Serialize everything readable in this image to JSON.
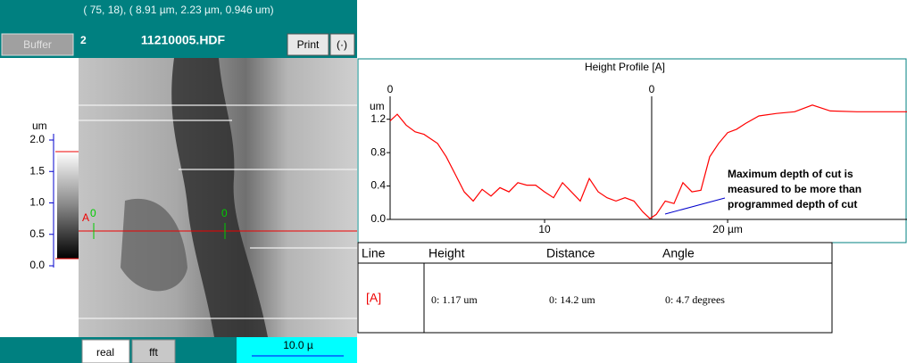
{
  "status_bar": {
    "coordinates": "( 75, 18),  ( 8.91 µm, 2.23 µm, 0.946 um)"
  },
  "toolbar": {
    "buffer_button": "Buffer",
    "buffer_number": "2",
    "filename": "11210005.HDF",
    "print_button": "Print",
    "extra_button": "(·)"
  },
  "color_scale": {
    "unit": "um",
    "lim": [
      0,
      2
    ],
    "ticks": [
      {
        "value": 0,
        "label": "0.0"
      },
      0.5,
      {
        "value": 1,
        "label": "1.0"
      },
      1.5,
      {
        "value": 2,
        "label": "2.0"
      }
    ]
  },
  "image": {
    "line_label": "A",
    "cursor_labels": [
      "0",
      "0"
    ]
  },
  "bottom_bar": {
    "real_button": "real",
    "fft_button": "fft",
    "scale_bar": "10.0 µ"
  },
  "chart_data": {
    "type": "line",
    "title": "Height Profile [A]",
    "y_label": "um",
    "color": "#ff0000",
    "x": [
      1.56,
      1.95,
      2.44,
      2.93,
      3.41,
      4.15,
      4.63,
      5.12,
      5.61,
      6.1,
      6.59,
      7.07,
      7.56,
      8.05,
      8.54,
      9.02,
      9.51,
      10.0,
      10.49,
      10.98,
      11.46,
      11.95,
      12.44,
      12.93,
      13.41,
      13.9,
      14.39,
      14.88,
      15.37,
      15.76,
      16.1,
      16.59,
      17.07,
      17.56,
      18.05,
      18.54,
      19.02,
      19.51,
      20.0,
      20.49,
      20.98,
      21.71,
      22.68,
      23.66,
      24.63,
      25.61,
      27.07,
      28.54,
      29.8
    ],
    "values": [
      1.18,
      1.26,
      1.13,
      1.05,
      1.02,
      0.91,
      0.75,
      0.54,
      0.33,
      0.22,
      0.36,
      0.28,
      0.38,
      0.33,
      0.44,
      0.41,
      0.41,
      0.33,
      0.26,
      0.44,
      0.33,
      0.22,
      0.49,
      0.33,
      0.26,
      0.22,
      0.26,
      0.22,
      0.09,
      0.01,
      0.06,
      0.22,
      0.19,
      0.44,
      0.33,
      0.35,
      0.75,
      0.91,
      1.04,
      1.08,
      1.15,
      1.24,
      1.27,
      1.29,
      1.37,
      1.3,
      1.29,
      1.29,
      1.29
    ],
    "xlim": [
      1.56,
      29.8
    ],
    "ylim": [
      0,
      1.4
    ],
    "xticks": [
      10,
      {
        "value": 20,
        "label": "20 µm"
      }
    ],
    "yticks": [
      {
        "value": 0,
        "label": "0.0"
      },
      0.4,
      0.8,
      1.2
    ],
    "cursors": [
      {
        "x": 1.56,
        "label": "0"
      },
      {
        "x": 15.85,
        "label": "0"
      }
    ],
    "annotation": [
      "Maximum depth of cut is",
      "measured to be more than",
      "programmed depth of cut"
    ]
  },
  "table": {
    "header": [
      "Line",
      "Height",
      "Distance",
      "Angle"
    ],
    "rows": [
      [
        "[A]",
        "0:  1.17 um",
        "0:  14.2 um",
        "0:  4.7 degrees"
      ]
    ]
  }
}
